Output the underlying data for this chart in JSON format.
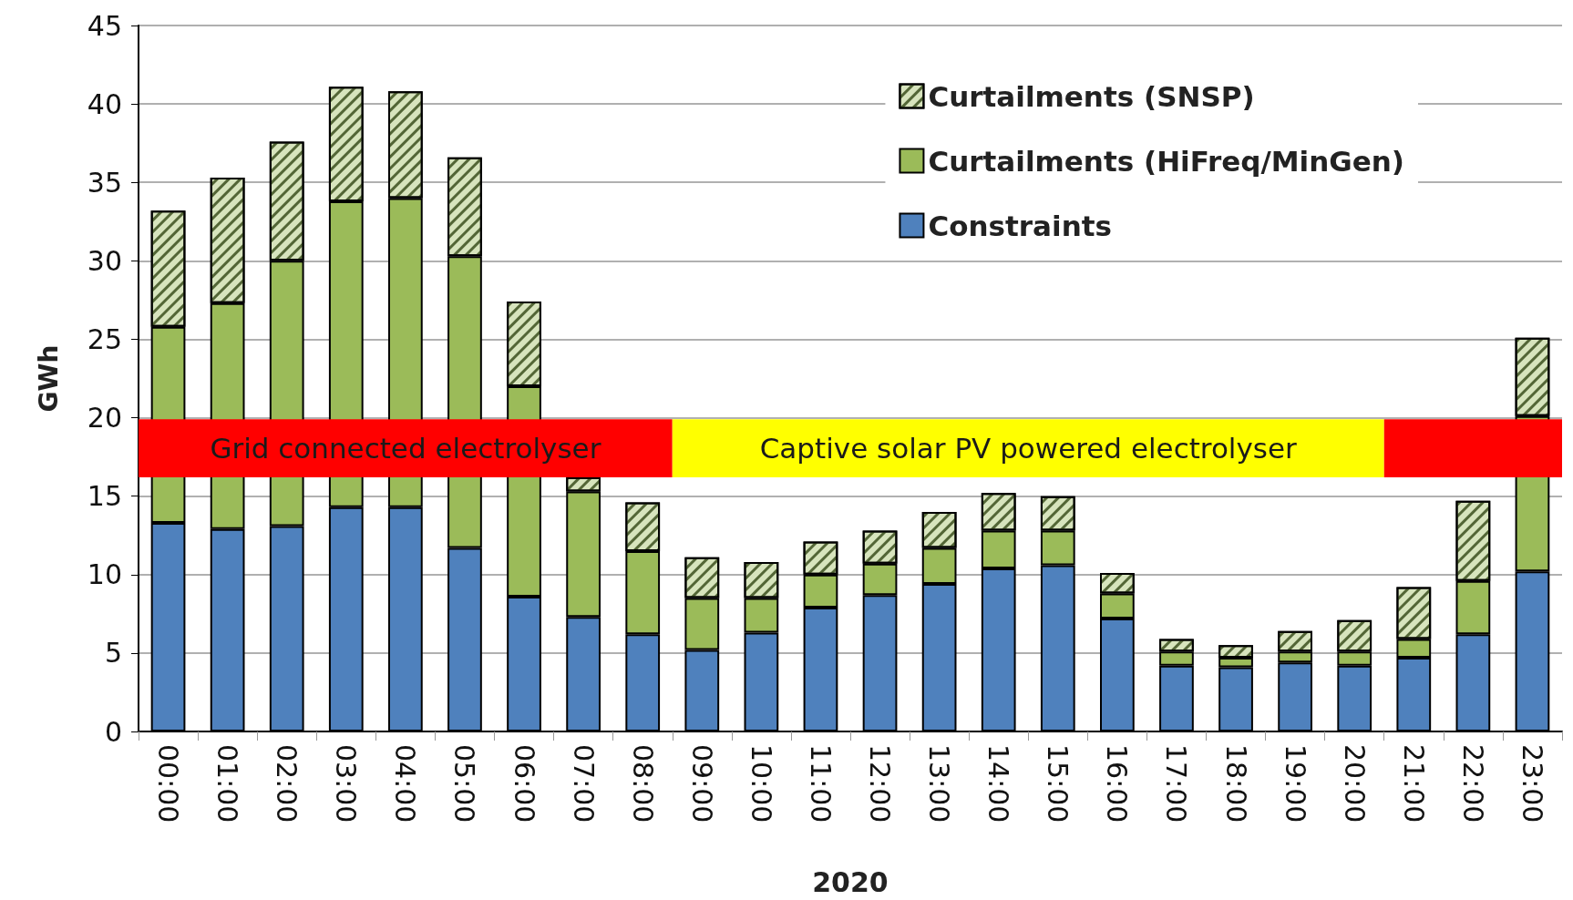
{
  "chart_data": {
    "type": "bar",
    "stacked": true,
    "xlabel": "2020",
    "ylabel": "GWh",
    "categories": [
      "00:00",
      "01:00",
      "02:00",
      "03:00",
      "04:00",
      "05:00",
      "06:00",
      "07:00",
      "08:00",
      "09:00",
      "10:00",
      "11:00",
      "12:00",
      "13:00",
      "14:00",
      "15:00",
      "16:00",
      "17:00",
      "18:00",
      "19:00",
      "20:00",
      "21:00",
      "22:00",
      "23:00"
    ],
    "series": [
      {
        "name": "Constraints",
        "color": "#4f81bd",
        "values": [
          13.3,
          12.9,
          13.1,
          14.3,
          14.3,
          11.7,
          8.6,
          7.3,
          6.2,
          5.2,
          6.3,
          7.9,
          8.7,
          9.4,
          10.4,
          10.6,
          7.2,
          4.2,
          4.1,
          4.4,
          4.2,
          4.7,
          6.2,
          10.2
        ]
      },
      {
        "name": "Curtailments (HiFreq/MinGen)",
        "color": "#9bbb59",
        "values": [
          12.5,
          14.4,
          16.9,
          19.5,
          19.7,
          18.6,
          13.4,
          8.0,
          5.3,
          3.3,
          2.2,
          2.1,
          2.0,
          2.3,
          2.4,
          2.2,
          1.6,
          0.9,
          0.6,
          0.7,
          0.9,
          1.2,
          3.4,
          9.9
        ]
      },
      {
        "name": "Curtailments (SNSP)",
        "color": "#d7e4bd",
        "values": [
          7.4,
          8.0,
          7.6,
          7.3,
          6.8,
          6.3,
          5.4,
          0.9,
          3.1,
          2.6,
          2.3,
          2.1,
          2.1,
          2.3,
          2.4,
          2.2,
          1.3,
          0.8,
          0.8,
          1.3,
          2.0,
          3.3,
          5.1,
          5.0
        ]
      }
    ],
    "ylim": [
      0,
      45
    ],
    "yticks": [
      0,
      5,
      10,
      15,
      20,
      25,
      30,
      35,
      40,
      45
    ],
    "grid": "y",
    "legend": "top right",
    "bands": [
      {
        "axis": "x",
        "from": "00:00",
        "to": "08:00",
        "label": "Grid connected electrolyser",
        "color": "#ff0000"
      },
      {
        "axis": "x",
        "from": "09:00",
        "to": "20:00",
        "label": "Captive solar PV powered electrolyser",
        "color": "#ffff00"
      },
      {
        "axis": "x",
        "from": "21:00",
        "to": "23:00",
        "label": null,
        "color": "#ff0000"
      }
    ]
  }
}
